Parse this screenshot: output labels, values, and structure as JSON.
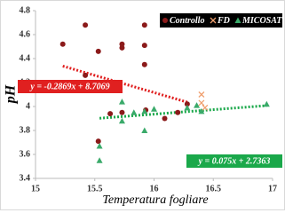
{
  "chart_data": {
    "type": "scatter",
    "x_label": "Temperatura fogliare",
    "y_label": "pH",
    "xlim": [
      15,
      17
    ],
    "ylim": [
      3.4,
      4.8
    ],
    "xticks": [
      15,
      15.5,
      16,
      16.5,
      17
    ],
    "yticks": [
      3.4,
      3.6,
      3.8,
      4,
      4.2,
      4.4,
      4.6,
      4.8
    ],
    "legend": "top-right",
    "series": [
      {
        "name": "Controllo",
        "color": "#8b1a1a",
        "marker": "circle",
        "x": [
          15.23,
          15.42,
          15.53,
          15.73,
          15.73,
          15.92,
          15.92,
          15.92,
          15.42,
          15.63,
          15.53,
          15.93,
          16.09,
          16.2,
          16.28,
          15.73
        ],
        "y": [
          4.52,
          4.68,
          4.46,
          4.52,
          4.49,
          4.68,
          4.51,
          4.35,
          4.26,
          3.94,
          3.71,
          3.97,
          3.9,
          3.95,
          4.02,
          3.95
        ]
      },
      {
        "name": "FD",
        "color": "#f0a070",
        "marker": "x",
        "x": [
          16.4,
          16.4,
          16.43
        ],
        "y": [
          4.1,
          4.03,
          3.99
        ]
      },
      {
        "name": "MICOSAT",
        "color": "#3aaa6a",
        "marker": "triangle",
        "x": [
          15.54,
          15.54,
          15.73,
          15.73,
          15.83,
          15.92,
          15.92,
          16.0,
          16.28,
          16.36,
          16.4,
          16.95
        ],
        "y": [
          3.55,
          3.67,
          3.88,
          4.04,
          3.95,
          3.96,
          3.8,
          3.98,
          3.99,
          4.01,
          3.96,
          4.02
        ]
      }
    ],
    "trendlines": [
      {
        "series": 0,
        "label": "y = -0.2869x + 8.7069",
        "slope": -0.2869,
        "intercept": 8.7069,
        "color": "#e02020"
      },
      {
        "series": 2,
        "label": "y = 0.075x + 2.7363",
        "slope": 0.075,
        "intercept": 2.7363,
        "color": "#1aa84a"
      }
    ]
  }
}
